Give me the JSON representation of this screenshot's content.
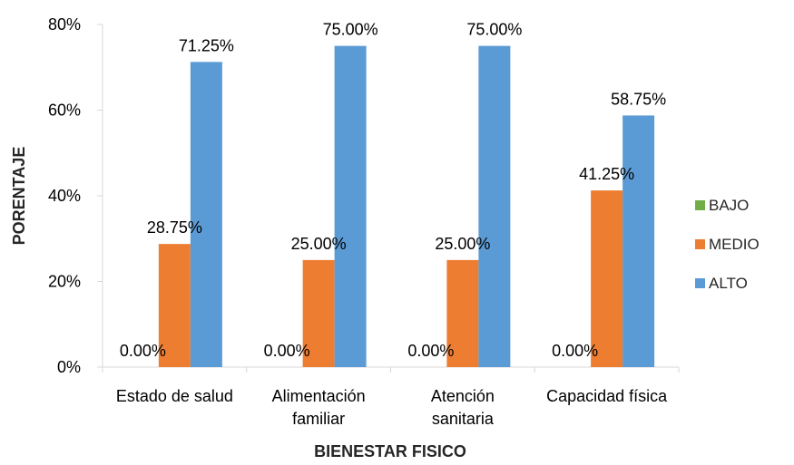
{
  "chart_data": {
    "type": "bar",
    "title": "",
    "xlabel": "BIENESTAR FISICO",
    "ylabel": "PORENTAJE",
    "ylim": [
      0,
      80
    ],
    "yticks": [
      "0%",
      "20%",
      "40%",
      "60%",
      "80%"
    ],
    "ytick_values": [
      0,
      20,
      40,
      60,
      80
    ],
    "categories": [
      [
        "Estado de salud"
      ],
      [
        "Alimentación",
        "familiar"
      ],
      [
        "Atención",
        "sanitaria"
      ],
      [
        "Capacidad física"
      ]
    ],
    "series": [
      {
        "name": "BAJO",
        "color": "#70ad47",
        "values": [
          0,
          0,
          0,
          0
        ],
        "labels": [
          "0.00%",
          "0.00%",
          "0.00%",
          "0.00%"
        ]
      },
      {
        "name": "MEDIO",
        "color": "#ed7d31",
        "values": [
          28.75,
          25.0,
          25.0,
          41.25
        ],
        "labels": [
          "28.75%",
          "25.00%",
          "25.00%",
          "41.25%"
        ]
      },
      {
        "name": "ALTO",
        "color": "#5b9bd5",
        "values": [
          71.25,
          75.0,
          75.0,
          58.75
        ],
        "labels": [
          "71.25%",
          "75.00%",
          "75.00%",
          "58.75%"
        ]
      }
    ],
    "grid": false,
    "legend_position": "right"
  }
}
